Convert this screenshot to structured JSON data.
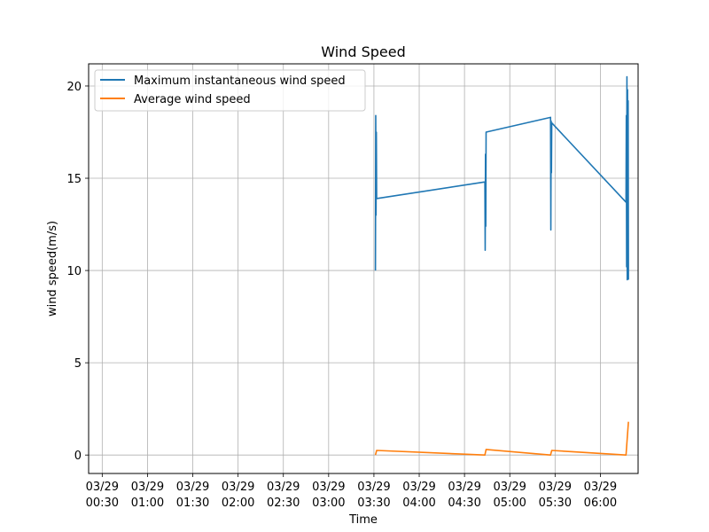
{
  "chart_data": {
    "type": "line",
    "title": "Wind Speed",
    "xlabel": "Time",
    "ylabel": "wind speed(m/s)",
    "x_range": [
      "03/29 00:21",
      "03/29 06:25"
    ],
    "ylim": [
      -1,
      21.2
    ],
    "grid": true,
    "legend_position": "top-left",
    "x_ticks": [
      {
        "time": "03/29 00:30",
        "line1": "03/29",
        "line2": "00:30"
      },
      {
        "time": "03/29 01:00",
        "line1": "03/29",
        "line2": "01:00"
      },
      {
        "time": "03/29 01:30",
        "line1": "03/29",
        "line2": "01:30"
      },
      {
        "time": "03/29 02:00",
        "line1": "03/29",
        "line2": "02:00"
      },
      {
        "time": "03/29 02:30",
        "line1": "03/29",
        "line2": "02:30"
      },
      {
        "time": "03/29 03:00",
        "line1": "03/29",
        "line2": "03:00"
      },
      {
        "time": "03/29 03:30",
        "line1": "03/29",
        "line2": "03:30"
      },
      {
        "time": "03/29 04:00",
        "line1": "03/29",
        "line2": "04:00"
      },
      {
        "time": "03/29 04:30",
        "line1": "03/29",
        "line2": "04:30"
      },
      {
        "time": "03/29 05:00",
        "line1": "03/29",
        "line2": "05:00"
      },
      {
        "time": "03/29 05:30",
        "line1": "03/29",
        "line2": "05:30"
      },
      {
        "time": "03/29 06:00",
        "line1": "03/29",
        "line2": "06:00"
      }
    ],
    "y_ticks": [
      0,
      5,
      10,
      15,
      20
    ],
    "series": [
      {
        "name": "Maximum instantaneous wind speed",
        "color": "#1f77b4",
        "points": [
          [
            "03/29 03:31:00",
            10.0
          ],
          [
            "03/29 03:31:12",
            18.4
          ],
          [
            "03/29 03:31:24",
            13.0
          ],
          [
            "03/29 03:31:36",
            17.5
          ],
          [
            "03/29 03:31:48",
            13.9
          ],
          [
            "03/29 04:43:30",
            14.8
          ],
          [
            "03/29 04:43:42",
            11.1
          ],
          [
            "03/29 04:43:54",
            16.3
          ],
          [
            "03/29 04:44:06",
            12.4
          ],
          [
            "03/29 04:44:18",
            17.5
          ],
          [
            "03/29 05:27:00",
            18.3
          ],
          [
            "03/29 05:27:12",
            12.2
          ],
          [
            "03/29 05:27:24",
            18.1
          ],
          [
            "03/29 05:27:36",
            15.3
          ],
          [
            "03/29 05:27:48",
            18.0
          ],
          [
            "03/29 06:17:00",
            13.7
          ],
          [
            "03/29 06:17:12",
            18.4
          ],
          [
            "03/29 06:17:24",
            10.2
          ],
          [
            "03/29 06:17:36",
            20.5
          ],
          [
            "03/29 06:17:48",
            9.5
          ],
          [
            "03/29 06:18:00",
            19.8
          ],
          [
            "03/29 06:18:12",
            12.3
          ],
          [
            "03/29 06:18:24",
            19.2
          ],
          [
            "03/29 06:18:36",
            9.5
          ]
        ]
      },
      {
        "name": "Average wind speed",
        "color": "#ff7f0e",
        "points": [
          [
            "03/29 03:31:00",
            0.0
          ],
          [
            "03/29 03:31:48",
            0.25
          ],
          [
            "03/29 04:43:30",
            0.0
          ],
          [
            "03/29 04:44:18",
            0.3
          ],
          [
            "03/29 05:27:00",
            0.0
          ],
          [
            "03/29 05:27:48",
            0.25
          ],
          [
            "03/29 06:17:00",
            0.0
          ],
          [
            "03/29 06:18:36",
            1.8
          ]
        ]
      }
    ]
  }
}
